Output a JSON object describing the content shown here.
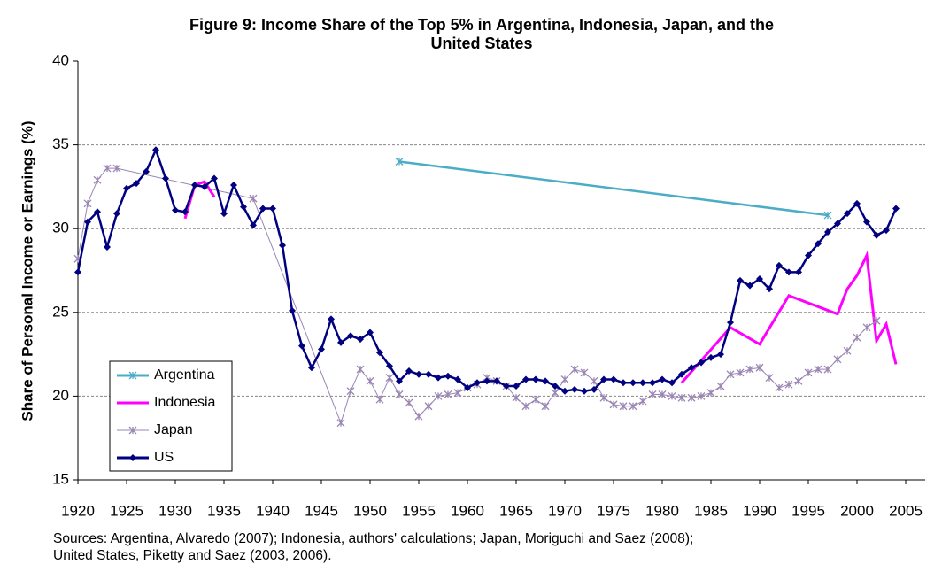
{
  "chart_data": {
    "type": "line",
    "title": "Figure 9: Income Share of the Top 5% in Argentina, Indonesia, Japan, and the United States",
    "y_label": "Share of Personal Income or Earnings (%)",
    "sources": [
      "Sources: Argentina, Alvaredo (2007); Indonesia, authors' calculations; Japan, Moriguchi and Saez (2008);",
      "United States, Piketty and Saez (2003, 2006)."
    ],
    "xlim": [
      1920,
      2007
    ],
    "xticks": [
      1920,
      1925,
      1930,
      1935,
      1940,
      1945,
      1950,
      1955,
      1960,
      1965,
      1970,
      1975,
      1980,
      1985,
      1990,
      1995,
      2000,
      2005
    ],
    "ylim": [
      15,
      40
    ],
    "yticks": [
      15,
      20,
      25,
      30,
      35,
      40
    ],
    "grid": true,
    "legend": "lower left",
    "series": [
      {
        "name": "Argentina",
        "color": "#4bacc6",
        "marker": "asterisk",
        "x": [
          1953,
          1997
        ],
        "values": [
          34.0,
          30.8
        ]
      },
      {
        "name": "Indonesia",
        "color": "#ff00ff",
        "marker": "none",
        "x": [
          1931,
          1932,
          1933,
          1934,
          1935,
          1982,
          1987,
          1990,
          1993,
          1998,
          1999,
          2000,
          2001,
          2002,
          2003,
          2004
        ],
        "values": [
          30.6,
          32.6,
          32.8,
          31.9,
          null,
          20.8,
          24.1,
          23.1,
          26.0,
          24.9,
          26.4,
          27.2,
          28.4,
          23.3,
          24.3,
          21.9
        ]
      },
      {
        "name": "Japan",
        "color": "#9a85b3",
        "marker": "asterisk",
        "x": [
          1920,
          1921,
          1922,
          1923,
          1924,
          1938,
          1947,
          1948,
          1949,
          1950,
          1951,
          1952,
          1953,
          1954,
          1955,
          1956,
          1957,
          1958,
          1959,
          1960,
          1961,
          1962,
          1963,
          1964,
          1965,
          1966,
          1967,
          1968,
          1969,
          1970,
          1971,
          1972,
          1973,
          1974,
          1975,
          1976,
          1977,
          1978,
          1979,
          1980,
          1981,
          1982,
          1983,
          1984,
          1985,
          1986,
          1987,
          1988,
          1989,
          1990,
          1991,
          1992,
          1993,
          1994,
          1995,
          1996,
          1997,
          1998,
          1999,
          2000,
          2001,
          2002
        ],
        "values": [
          28.2,
          31.5,
          32.9,
          33.6,
          33.6,
          31.8,
          18.4,
          20.3,
          21.6,
          20.9,
          19.8,
          21.1,
          20.1,
          19.6,
          18.8,
          19.4,
          20.0,
          20.1,
          20.2,
          20.5,
          20.7,
          21.1,
          20.9,
          20.6,
          19.9,
          19.4,
          19.8,
          19.4,
          20.2,
          21.0,
          21.6,
          21.4,
          20.9,
          19.9,
          19.5,
          19.4,
          19.4,
          19.7,
          20.1,
          20.1,
          20.0,
          19.9,
          19.9,
          20.0,
          20.2,
          20.6,
          21.3,
          21.4,
          21.6,
          21.7,
          21.1,
          20.5,
          20.7,
          20.9,
          21.4,
          21.6,
          21.6,
          22.2,
          22.7,
          23.5,
          24.1,
          24.5
        ]
      },
      {
        "name": "US",
        "color": "#000080",
        "marker": "diamond",
        "x": [
          1920,
          1921,
          1922,
          1923,
          1924,
          1925,
          1926,
          1927,
          1928,
          1929,
          1930,
          1931,
          1932,
          1933,
          1934,
          1935,
          1936,
          1937,
          1938,
          1939,
          1940,
          1941,
          1942,
          1943,
          1944,
          1945,
          1946,
          1947,
          1948,
          1949,
          1950,
          1951,
          1952,
          1953,
          1954,
          1955,
          1956,
          1957,
          1958,
          1959,
          1960,
          1961,
          1962,
          1963,
          1964,
          1965,
          1966,
          1967,
          1968,
          1969,
          1970,
          1971,
          1972,
          1973,
          1974,
          1975,
          1976,
          1977,
          1978,
          1979,
          1980,
          1981,
          1982,
          1983,
          1984,
          1985,
          1986,
          1987,
          1988,
          1989,
          1990,
          1991,
          1992,
          1993,
          1994,
          1995,
          1996,
          1997,
          1998,
          1999,
          2000,
          2001,
          2002,
          2003,
          2004
        ],
        "values": [
          27.4,
          30.4,
          31.0,
          28.9,
          30.9,
          32.4,
          32.7,
          33.4,
          34.7,
          33.0,
          31.1,
          31.0,
          32.6,
          32.5,
          33.0,
          30.9,
          32.6,
          31.3,
          30.2,
          31.2,
          31.2,
          29.0,
          25.1,
          23.0,
          21.7,
          22.8,
          24.6,
          23.2,
          23.6,
          23.4,
          23.8,
          22.6,
          21.8,
          20.9,
          21.5,
          21.3,
          21.3,
          21.1,
          21.2,
          21.0,
          20.5,
          20.8,
          20.9,
          20.9,
          20.6,
          20.6,
          21.0,
          21.0,
          20.9,
          20.6,
          20.3,
          20.4,
          20.3,
          20.4,
          21.0,
          21.0,
          20.8,
          20.8,
          20.8,
          20.8,
          21.0,
          20.8,
          21.3,
          21.7,
          22.0,
          22.3,
          22.5,
          24.4,
          26.9,
          26.6,
          27.0,
          26.4,
          27.8,
          27.4,
          27.4,
          28.4,
          29.1,
          29.8,
          30.3,
          30.9,
          31.5,
          30.4,
          29.6,
          29.9,
          31.2
        ]
      }
    ]
  }
}
